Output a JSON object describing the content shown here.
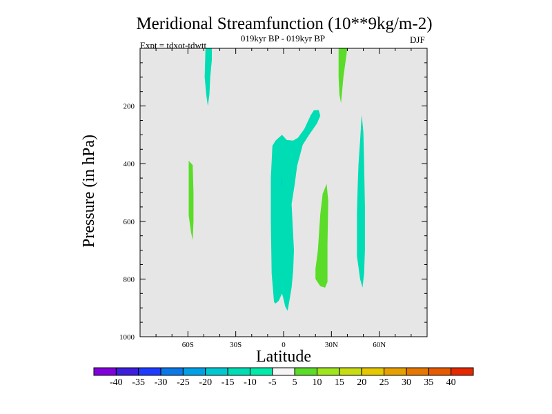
{
  "chart_data": {
    "type": "contour",
    "title": "Meridional Streamfunction (10**9kg/m-2)",
    "subtitle": "019kyr BP - 019kyr BP",
    "left_label": "Expt = tdxot-tdwtt",
    "season": "DJF",
    "xlabel": "Latitude",
    "ylabel": "Pressure (in hPa)",
    "xlim": [
      -90,
      90
    ],
    "ylim": [
      0,
      1000
    ],
    "x_ticks": [
      {
        "value": -60,
        "label": "60S"
      },
      {
        "value": -30,
        "label": "30S"
      },
      {
        "value": 0,
        "label": "0"
      },
      {
        "value": 30,
        "label": "30N"
      },
      {
        "value": 60,
        "label": "60N"
      }
    ],
    "y_ticks": [
      {
        "value": 200,
        "label": "200"
      },
      {
        "value": 400,
        "label": "400"
      },
      {
        "value": 600,
        "label": "600"
      },
      {
        "value": 800,
        "label": "800"
      },
      {
        "value": 1000,
        "label": "1000"
      }
    ],
    "background_color": "#e6e6e6",
    "regions": [
      {
        "name": "sh-upper-negative",
        "level": "-10 to -5",
        "color": "#00dcb4",
        "points": [
          [
            -49,
            0
          ],
          [
            -45,
            0
          ],
          [
            -45,
            40
          ],
          [
            -46,
            100
          ],
          [
            -46.5,
            160
          ],
          [
            -47.5,
            200
          ],
          [
            -48.5,
            160
          ],
          [
            -49.5,
            100
          ]
        ]
      },
      {
        "name": "sh-mid-positive",
        "level": "5 to 10",
        "color": "#5adc28",
        "points": [
          [
            -59.5,
            390
          ],
          [
            -57,
            405
          ],
          [
            -56.5,
            500
          ],
          [
            -56.5,
            600
          ],
          [
            -57,
            665
          ],
          [
            -58,
            640
          ],
          [
            -59.5,
            580
          ],
          [
            -59.5,
            480
          ]
        ]
      },
      {
        "name": "tropical-negative-main",
        "level": "-10 to -5",
        "color": "#00dcb4",
        "points": [
          [
            -7,
            338
          ],
          [
            -5,
            320
          ],
          [
            -1,
            300
          ],
          [
            2,
            318
          ],
          [
            6,
            320
          ],
          [
            9,
            310
          ],
          [
            13,
            280
          ],
          [
            17,
            232
          ],
          [
            19,
            215
          ],
          [
            22,
            214
          ],
          [
            23,
            234
          ],
          [
            21,
            260
          ],
          [
            16,
            300
          ],
          [
            12,
            335
          ],
          [
            8.5,
            408
          ],
          [
            7,
            470
          ],
          [
            5,
            540
          ],
          [
            6.5,
            700
          ],
          [
            6,
            770
          ],
          [
            5,
            830
          ],
          [
            3.5,
            880
          ],
          [
            2.5,
            910
          ],
          [
            1,
            895
          ],
          [
            0,
            870
          ],
          [
            -1,
            850
          ],
          [
            -3,
            875
          ],
          [
            -5,
            885
          ],
          [
            -6,
            880
          ],
          [
            -7.5,
            780
          ],
          [
            -8,
            600
          ],
          [
            -8,
            450
          ]
        ]
      },
      {
        "name": "tropical-inner-negative",
        "level": "-15 to -10",
        "color": "#00c8d2",
        "points": [
          [
            -1.5,
            450
          ],
          [
            -1,
            455
          ],
          [
            -1,
            475
          ],
          [
            -1.5,
            482
          ]
        ]
      },
      {
        "name": "nh-mid-positive",
        "level": "5 to 10",
        "color": "#5adc28",
        "points": [
          [
            23,
            575
          ],
          [
            24.5,
            505
          ],
          [
            27,
            470
          ],
          [
            28,
            530
          ],
          [
            27.5,
            680
          ],
          [
            27.5,
            810
          ],
          [
            26,
            830
          ],
          [
            23,
            825
          ],
          [
            20,
            800
          ],
          [
            20,
            765
          ],
          [
            21.5,
            700
          ]
        ]
      },
      {
        "name": "nh-upper-positive",
        "level": "5 to 10",
        "color": "#5adc28",
        "points": [
          [
            34.5,
            0
          ],
          [
            40,
            0
          ],
          [
            39,
            40
          ],
          [
            37.5,
            100
          ],
          [
            36.5,
            160
          ],
          [
            36,
            190
          ],
          [
            35,
            160
          ],
          [
            34.5,
            100
          ]
        ]
      },
      {
        "name": "nh-midlat-negative",
        "level": "-10 to -5",
        "color": "#00dcb4",
        "points": [
          [
            49,
            230
          ],
          [
            50,
            290
          ],
          [
            50.5,
            400
          ],
          [
            51,
            550
          ],
          [
            51,
            700
          ],
          [
            50.5,
            780
          ],
          [
            49.5,
            830
          ],
          [
            48,
            800
          ],
          [
            46,
            720
          ],
          [
            46,
            570
          ],
          [
            46.5,
            470
          ],
          [
            47,
            400
          ],
          [
            48,
            320
          ]
        ]
      }
    ],
    "colorbar": {
      "labels": [
        "-40",
        "-35",
        "-30",
        "-25",
        "-20",
        "-15",
        "-10",
        "-5",
        "5",
        "10",
        "15",
        "20",
        "25",
        "30",
        "35",
        "40"
      ],
      "colors": [
        "#8200dc",
        "#3c1edc",
        "#1e3cff",
        "#0a78e6",
        "#00a0e6",
        "#00c8d2",
        "#00dcb4",
        "#00ebaa",
        "#f5f5f5",
        "#5adc28",
        "#a0e61e",
        "#c8dc14",
        "#e6c800",
        "#e6a000",
        "#e67800",
        "#e65a00",
        "#e62800"
      ]
    }
  }
}
